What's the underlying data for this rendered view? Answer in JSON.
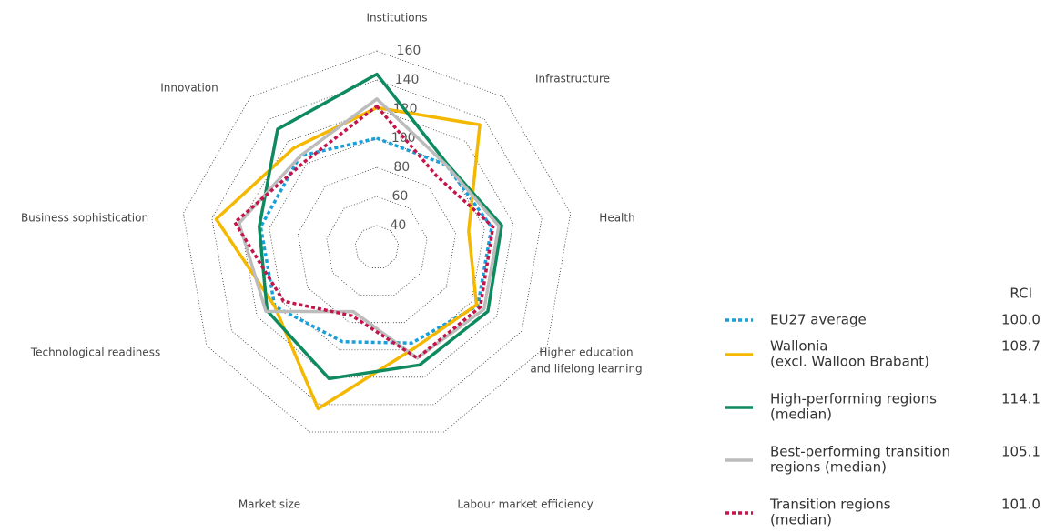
{
  "chart_data": {
    "type": "radar",
    "categories": [
      [
        "Institutions"
      ],
      [
        "Infrastructure"
      ],
      [
        "Health"
      ],
      [
        "Higher education",
        "and lifelong learning"
      ],
      [
        "Labour market efficiency"
      ],
      [
        "Market size"
      ],
      [
        "Technological readiness"
      ],
      [
        "Business sophistication"
      ],
      [
        "Innovation"
      ]
    ],
    "rlim": [
      25,
      160
    ],
    "rticks": [
      40,
      60,
      80,
      100,
      120,
      140,
      160
    ],
    "legend_header": "RCI",
    "series": [
      {
        "name": [
          "EU27 average"
        ],
        "rci": "100.0",
        "color": "#1a9fd9",
        "dashed": true,
        "values": [
          100,
          99,
          105,
          105,
          95,
          94,
          106,
          106,
          107
        ]
      },
      {
        "name": [
          "Wallonia",
          "(excl. Walloon Brabant)"
        ],
        "rci": "108.7",
        "color": "#f5b800",
        "dashed": false,
        "values": [
          121,
          135,
          89,
          104,
          99,
          143,
          106,
          137,
          114
        ]
      },
      {
        "name": [
          "High-performing regions",
          "(median)"
        ],
        "rci": "114.1",
        "color": "#0e8a5f",
        "dashed": false,
        "values": [
          144,
          100,
          112,
          113,
          111,
          121,
          112,
          107,
          131
        ]
      },
      {
        "name": [
          "Best-performing transition",
          "regions (median)"
        ],
        "rci": "105.1",
        "color": "#bcbcbc",
        "dashed": false,
        "values": [
          127,
          99,
          110,
          110,
          106,
          72,
          113,
          121,
          107
        ]
      },
      {
        "name": [
          "Transition regions",
          "(median)"
        ],
        "rci": "101.0",
        "color": "#c4154a",
        "dashed": true,
        "values": [
          122,
          89,
          106,
          107,
          106,
          75,
          99,
          124,
          102
        ]
      }
    ]
  }
}
